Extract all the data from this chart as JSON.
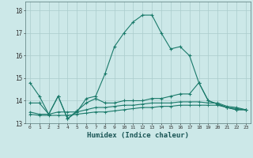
{
  "title": "",
  "xlabel": "Humidex (Indice chaleur)",
  "xlim": [
    -0.5,
    23.5
  ],
  "ylim": [
    13.0,
    18.4
  ],
  "yticks": [
    13,
    14,
    15,
    16,
    17,
    18
  ],
  "xticks": [
    0,
    1,
    2,
    3,
    4,
    5,
    6,
    7,
    8,
    9,
    10,
    11,
    12,
    13,
    14,
    15,
    16,
    17,
    18,
    19,
    20,
    21,
    22,
    23
  ],
  "bg_color": "#cce8e8",
  "grid_color": "#aacccc",
  "line_color": "#1a7a6a",
  "line1_x": [
    0,
    1,
    2,
    3,
    4,
    5,
    6,
    7,
    8,
    9,
    10,
    11,
    12,
    13,
    14,
    15,
    16,
    17,
    18,
    19,
    20,
    21,
    22,
    23
  ],
  "line1_y": [
    14.8,
    14.2,
    13.4,
    14.2,
    13.2,
    13.5,
    14.1,
    14.2,
    15.2,
    16.4,
    17.0,
    17.5,
    17.8,
    17.8,
    17.0,
    16.3,
    16.4,
    16.0,
    14.8,
    14.0,
    13.85,
    13.7,
    13.6,
    13.6
  ],
  "line2_x": [
    0,
    1,
    2,
    3,
    4,
    5,
    6,
    7,
    8,
    9,
    10,
    11,
    12,
    13,
    14,
    15,
    16,
    17,
    18,
    19,
    20,
    21,
    22,
    23
  ],
  "line2_y": [
    13.9,
    13.9,
    13.4,
    14.2,
    13.2,
    13.55,
    13.9,
    14.1,
    13.9,
    13.9,
    14.0,
    14.0,
    14.0,
    14.1,
    14.1,
    14.2,
    14.3,
    14.3,
    14.8,
    14.0,
    13.85,
    13.7,
    13.6,
    13.6
  ],
  "line3_x": [
    0,
    1,
    2,
    3,
    4,
    5,
    6,
    7,
    8,
    9,
    10,
    11,
    12,
    13,
    14,
    15,
    16,
    17,
    18,
    19,
    20,
    21,
    22,
    23
  ],
  "line3_y": [
    13.5,
    13.4,
    13.4,
    13.5,
    13.5,
    13.5,
    13.6,
    13.7,
    13.7,
    13.75,
    13.8,
    13.8,
    13.85,
    13.9,
    13.9,
    13.9,
    13.95,
    13.95,
    13.95,
    13.9,
    13.9,
    13.75,
    13.7,
    13.6
  ],
  "line4_x": [
    0,
    1,
    2,
    3,
    4,
    5,
    6,
    7,
    8,
    9,
    10,
    11,
    12,
    13,
    14,
    15,
    16,
    17,
    18,
    19,
    20,
    21,
    22,
    23
  ],
  "line4_y": [
    13.4,
    13.35,
    13.35,
    13.35,
    13.35,
    13.4,
    13.45,
    13.5,
    13.5,
    13.55,
    13.6,
    13.65,
    13.7,
    13.7,
    13.75,
    13.75,
    13.8,
    13.8,
    13.8,
    13.8,
    13.8,
    13.7,
    13.65,
    13.6
  ]
}
